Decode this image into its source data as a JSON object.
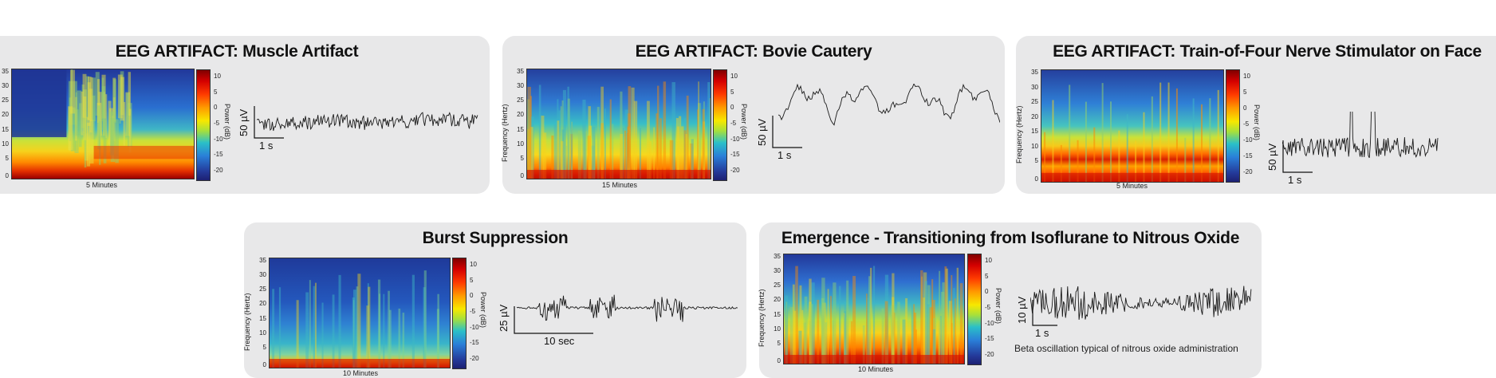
{
  "colorbar": {
    "ticks": [
      "10",
      "5",
      "0",
      "-5",
      "-10",
      "-15",
      "-20"
    ],
    "label": "Power (dB)",
    "colors": [
      "#7f0000",
      "#ff3b00",
      "#f7e800",
      "#2ac0c8",
      "#243a9a",
      "#1d2072"
    ]
  },
  "freq_axis": {
    "ticks": [
      "35",
      "30",
      "25",
      "20",
      "15",
      "10",
      "5",
      "0"
    ],
    "label": "Frequency (Hertz)"
  },
  "panels": [
    {
      "title": "EEG ARTIFACT: Muscle Artifact",
      "xlabel": "5 Minutes",
      "scale_v": "50 µV",
      "scale_h": "1 s"
    },
    {
      "title": "EEG ARTIFACT: Bovie Cautery",
      "xlabel": "15 Minutes",
      "scale_v": "50 µV",
      "scale_h": "1 s"
    },
    {
      "title": "EEG ARTIFACT: Train-of-Four Nerve Stimulator on Face",
      "xlabel": "5 Minutes",
      "scale_v": "50 µV",
      "scale_h": "1 s"
    },
    {
      "title": "Burst Suppression",
      "xlabel": "10 Minutes",
      "scale_v": "25 µV",
      "scale_h": "10 sec"
    },
    {
      "title": "Emergence - Transitioning from Isoflurane to Nitrous Oxide",
      "xlabel": "10 Minutes",
      "scale_v": "10 µV",
      "scale_h": "1 s",
      "caption": "Beta oscillation typical of nitrous oxide administration"
    }
  ]
}
